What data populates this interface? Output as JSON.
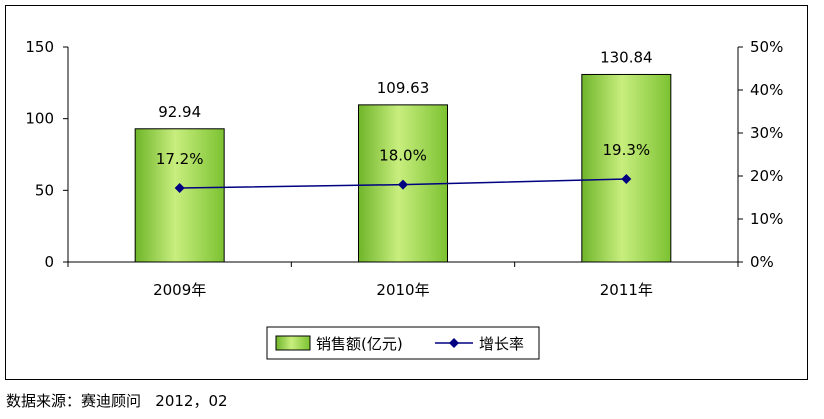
{
  "chart_data": {
    "type": "bar",
    "categories": [
      "2009年",
      "2010年",
      "2011年"
    ],
    "series": [
      {
        "name": "销售额(亿元)",
        "type": "bar",
        "axis": "left",
        "values": [
          92.94,
          109.63,
          130.84
        ],
        "labels": [
          "92.94",
          "109.63",
          "130.84"
        ],
        "color": "#9ACD32"
      },
      {
        "name": "增长率",
        "type": "line",
        "axis": "right",
        "values": [
          17.2,
          18.0,
          19.3
        ],
        "labels": [
          "17.2%",
          "18.0%",
          "19.3%"
        ],
        "color": "#000080"
      }
    ],
    "y_left": {
      "min": 0,
      "max": 150,
      "ticks": [
        0,
        50,
        100,
        150
      ],
      "tick_labels": [
        "0",
        "50",
        "100",
        "150"
      ]
    },
    "y_right": {
      "min": 0,
      "max": 50,
      "ticks": [
        0,
        10,
        20,
        30,
        40,
        50
      ],
      "tick_labels": [
        "0%",
        "10%",
        "20%",
        "30%",
        "40%",
        "50%"
      ]
    },
    "grid": false,
    "legend_position": "bottom"
  },
  "source": "数据来源：赛迪顾问   2012，02"
}
